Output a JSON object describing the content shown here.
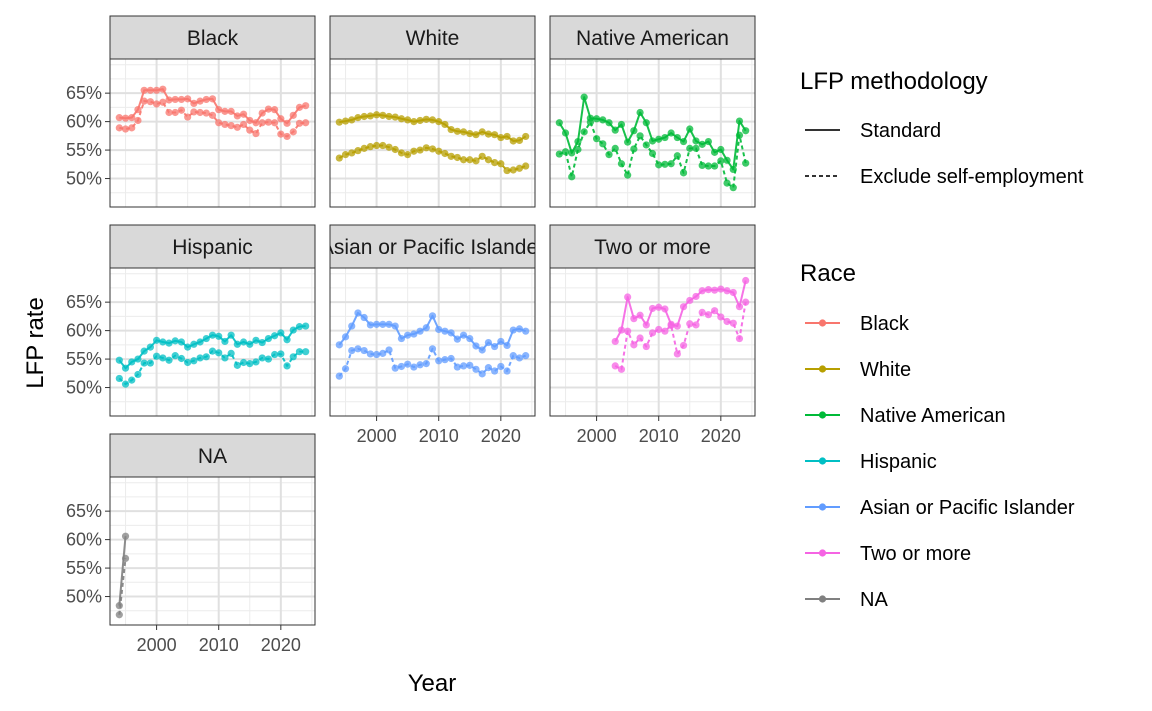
{
  "chart_data": {
    "type": "line",
    "facet_by": "Race",
    "xlabel": "Year",
    "ylabel": "LFP rate",
    "xlim": [
      1992.5,
      2025.5
    ],
    "ylim": [
      45,
      71
    ],
    "x_ticks": [
      2000,
      2010,
      2020
    ],
    "y_ticks": [
      50,
      55,
      60,
      65
    ],
    "y_tick_format": "{v}%",
    "grid": true,
    "legend_position": "right",
    "legends": {
      "linetype": {
        "title": "LFP methodology",
        "entries": [
          {
            "label": "Standard",
            "dash": "solid"
          },
          {
            "label": "Exclude self-employment",
            "dash": "dashed"
          }
        ]
      },
      "color": {
        "title": "Race",
        "entries": [
          {
            "label": "Black",
            "color": "#F8766D"
          },
          {
            "label": "White",
            "color": "#B79F00"
          },
          {
            "label": "Native American",
            "color": "#00BA38"
          },
          {
            "label": "Hispanic",
            "color": "#00BFC4"
          },
          {
            "label": "Asian or Pacific Islander",
            "color": "#619CFF"
          },
          {
            "label": "Two or more",
            "color": "#F564E3"
          },
          {
            "label": "NA",
            "color": "#808080"
          }
        ]
      }
    },
    "facets": [
      {
        "label": "Black",
        "color": "#F8766D",
        "series": [
          {
            "name": "Standard",
            "dash": "solid",
            "x": [
              1994,
              1995,
              1996,
              1997,
              1998,
              1999,
              2000,
              2001,
              2002,
              2003,
              2004,
              2005,
              2006,
              2007,
              2008,
              2009,
              2010,
              2011,
              2012,
              2013,
              2014,
              2015,
              2016,
              2017,
              2018,
              2019,
              2020,
              2021,
              2022,
              2023,
              2024
            ],
            "y": [
              60.7,
              60.6,
              60.7,
              62.1,
              65.5,
              65.5,
              65.5,
              65.7,
              63.8,
              63.9,
              63.9,
              64.0,
              63.2,
              63.6,
              63.9,
              64.0,
              62.1,
              61.8,
              61.8,
              61.0,
              61.3,
              60.2,
              59.8,
              61.5,
              62.2,
              62.1,
              60.5,
              59.7,
              61.1,
              62.5,
              62.8
            ]
          },
          {
            "name": "Exclude self-employment",
            "dash": "dashed",
            "x": [
              1994,
              1995,
              1996,
              1997,
              1998,
              1999,
              2000,
              2001,
              2002,
              2003,
              2004,
              2005,
              2006,
              2007,
              2008,
              2009,
              2010,
              2011,
              2012,
              2013,
              2014,
              2015,
              2016,
              2017,
              2018,
              2019,
              2020,
              2021,
              2022,
              2023,
              2024
            ],
            "y": [
              58.9,
              58.7,
              58.9,
              60.2,
              63.6,
              63.5,
              63.1,
              63.4,
              61.6,
              61.6,
              62.0,
              60.8,
              61.7,
              61.6,
              61.5,
              61.1,
              59.8,
              59.5,
              59.3,
              59.0,
              59.5,
              58.5,
              57.9,
              59.8,
              59.9,
              59.8,
              57.8,
              57.4,
              58.2,
              59.7,
              59.8
            ]
          }
        ]
      },
      {
        "label": "White",
        "color": "#B79F00",
        "series": [
          {
            "name": "Standard",
            "dash": "solid",
            "x": [
              1994,
              1995,
              1996,
              1997,
              1998,
              1999,
              2000,
              2001,
              2002,
              2003,
              2004,
              2005,
              2006,
              2007,
              2008,
              2009,
              2010,
              2011,
              2012,
              2013,
              2014,
              2015,
              2016,
              2017,
              2018,
              2019,
              2020,
              2021,
              2022,
              2023,
              2024
            ],
            "y": [
              59.9,
              60.1,
              60.3,
              60.7,
              60.9,
              61.0,
              61.2,
              61.1,
              60.9,
              60.8,
              60.5,
              60.3,
              60.0,
              60.2,
              60.4,
              60.3,
              60.0,
              59.5,
              58.6,
              58.3,
              58.2,
              57.9,
              57.7,
              58.2,
              57.8,
              57.7,
              57.2,
              57.4,
              56.6,
              56.7,
              57.4
            ]
          },
          {
            "name": "Exclude self-employment",
            "dash": "dashed",
            "x": [
              1994,
              1995,
              1996,
              1997,
              1998,
              1999,
              2000,
              2001,
              2002,
              2003,
              2004,
              2005,
              2006,
              2007,
              2008,
              2009,
              2010,
              2011,
              2012,
              2013,
              2014,
              2015,
              2016,
              2017,
              2018,
              2019,
              2020,
              2021,
              2022,
              2023,
              2024
            ],
            "y": [
              53.6,
              54.2,
              54.5,
              54.9,
              55.3,
              55.6,
              55.8,
              55.8,
              55.5,
              55.1,
              54.5,
              54.2,
              54.8,
              55.0,
              55.4,
              55.2,
              54.8,
              54.4,
              53.9,
              53.7,
              53.3,
              53.3,
              53.1,
              53.9,
              53.3,
              52.8,
              52.6,
              51.4,
              51.5,
              51.8,
              52.2
            ]
          }
        ]
      },
      {
        "label": "Native American",
        "color": "#00BA38",
        "series": [
          {
            "name": "Standard",
            "dash": "solid",
            "x": [
              1994,
              1995,
              1996,
              1997,
              1998,
              1999,
              2000,
              2001,
              2002,
              2003,
              2004,
              2005,
              2006,
              2007,
              2008,
              2009,
              2010,
              2011,
              2012,
              2013,
              2014,
              2015,
              2016,
              2017,
              2018,
              2019,
              2020,
              2021,
              2022,
              2023,
              2024
            ],
            "y": [
              59.8,
              58.0,
              54.5,
              56.5,
              64.3,
              60.6,
              60.5,
              60.3,
              59.8,
              58.5,
              59.5,
              56.4,
              58.4,
              61.6,
              59.8,
              56.6,
              56.9,
              57.2,
              58.0,
              57.2,
              56.5,
              58.7,
              56.6,
              56.0,
              56.5,
              54.6,
              55.1,
              53.2,
              51.6,
              60.1,
              58.4
            ]
          },
          {
            "name": "Exclude self-employment",
            "dash": "dashed",
            "x": [
              1994,
              1995,
              1996,
              1997,
              1998,
              1999,
              2000,
              2001,
              2002,
              2003,
              2004,
              2005,
              2006,
              2007,
              2008,
              2009,
              2010,
              2011,
              2012,
              2013,
              2014,
              2015,
              2016,
              2017,
              2018,
              2019,
              2020,
              2021,
              2022,
              2023,
              2024
            ],
            "y": [
              54.3,
              54.7,
              50.3,
              55.1,
              58.2,
              59.9,
              57.0,
              56.1,
              54.2,
              55.3,
              52.6,
              50.6,
              55.2,
              57.5,
              55.9,
              54.4,
              52.4,
              52.5,
              52.6,
              54.0,
              51.0,
              55.3,
              55.3,
              52.3,
              52.2,
              52.2,
              53.1,
              49.2,
              48.4,
              57.6,
              52.7
            ]
          }
        ]
      },
      {
        "label": "Hispanic",
        "color": "#00BFC4",
        "series": [
          {
            "name": "Standard",
            "dash": "solid",
            "x": [
              1994,
              1995,
              1996,
              1997,
              1998,
              1999,
              2000,
              2001,
              2002,
              2003,
              2004,
              2005,
              2006,
              2007,
              2008,
              2009,
              2010,
              2011,
              2012,
              2013,
              2014,
              2015,
              2016,
              2017,
              2018,
              2019,
              2020,
              2021,
              2022,
              2023,
              2024
            ],
            "y": [
              54.8,
              53.4,
              54.5,
              55.0,
              56.4,
              57.1,
              58.3,
              58.0,
              57.8,
              58.2,
              58.0,
              57.1,
              57.6,
              58.0,
              58.6,
              59.2,
              59.0,
              58.1,
              59.2,
              57.6,
              58.0,
              57.6,
              58.3,
              57.9,
              58.6,
              59.1,
              59.6,
              58.4,
              60.1,
              60.7,
              60.8
            ]
          },
          {
            "name": "Exclude self-employment",
            "dash": "dashed",
            "x": [
              1994,
              1995,
              1996,
              1997,
              1998,
              1999,
              2000,
              2001,
              2002,
              2003,
              2004,
              2005,
              2006,
              2007,
              2008,
              2009,
              2010,
              2011,
              2012,
              2013,
              2014,
              2015,
              2016,
              2017,
              2018,
              2019,
              2020,
              2021,
              2022,
              2023,
              2024
            ],
            "y": [
              51.6,
              50.6,
              51.3,
              52.3,
              54.3,
              54.3,
              55.5,
              55.2,
              54.8,
              55.6,
              55.1,
              54.4,
              54.7,
              55.2,
              55.4,
              56.4,
              56.1,
              55.2,
              56.0,
              53.9,
              54.4,
              54.2,
              54.5,
              55.2,
              55.0,
              55.8,
              55.9,
              53.8,
              55.4,
              56.3,
              56.3
            ]
          }
        ]
      },
      {
        "label": "Asian or Pacific Islander",
        "color": "#619CFF",
        "series": [
          {
            "name": "Standard",
            "dash": "solid",
            "x": [
              1994,
              1995,
              1996,
              1997,
              1998,
              1999,
              2000,
              2001,
              2002,
              2003,
              2004,
              2005,
              2006,
              2007,
              2008,
              2009,
              2010,
              2011,
              2012,
              2013,
              2014,
              2015,
              2016,
              2017,
              2018,
              2019,
              2020,
              2021,
              2022,
              2023,
              2024
            ],
            "y": [
              57.5,
              58.9,
              60.8,
              63.1,
              62.3,
              61.0,
              61.1,
              61.1,
              61.1,
              60.8,
              58.6,
              59.2,
              59.4,
              59.9,
              60.5,
              62.6,
              60.2,
              59.9,
              59.6,
              58.5,
              59.2,
              58.6,
              57.3,
              56.6,
              57.9,
              57.2,
              58.1,
              57.4,
              60.1,
              60.3,
              59.9
            ]
          },
          {
            "name": "Exclude self-employment",
            "dash": "dashed",
            "x": [
              1994,
              1995,
              1996,
              1997,
              1998,
              1999,
              2000,
              2001,
              2002,
              2003,
              2004,
              2005,
              2006,
              2007,
              2008,
              2009,
              2010,
              2011,
              2012,
              2013,
              2014,
              2015,
              2016,
              2017,
              2018,
              2019,
              2020,
              2021,
              2022,
              2023,
              2024
            ],
            "y": [
              52.0,
              53.3,
              56.5,
              56.8,
              56.5,
              55.9,
              55.8,
              56.0,
              56.6,
              53.4,
              53.7,
              54.1,
              53.6,
              54.0,
              54.2,
              56.8,
              54.7,
              54.9,
              55.1,
              53.6,
              53.8,
              53.9,
              53.2,
              52.4,
              53.5,
              52.9,
              53.7,
              52.9,
              55.6,
              55.2,
              55.6
            ]
          }
        ]
      },
      {
        "label": "Two or more",
        "color": "#F564E3",
        "series": [
          {
            "name": "Standard",
            "dash": "solid",
            "x": [
              2003,
              2004,
              2005,
              2006,
              2007,
              2008,
              2009,
              2010,
              2011,
              2012,
              2013,
              2014,
              2015,
              2016,
              2017,
              2018,
              2019,
              2020,
              2021,
              2022,
              2023,
              2024
            ],
            "y": [
              58.1,
              60.1,
              65.9,
              62.1,
              62.7,
              61.0,
              63.9,
              64.1,
              63.8,
              61.1,
              60.8,
              64.2,
              65.3,
              66.0,
              67.0,
              67.2,
              67.1,
              67.3,
              67.0,
              66.7,
              64.2,
              68.8
            ]
          },
          {
            "name": "Exclude self-employment",
            "dash": "dashed",
            "x": [
              2003,
              2004,
              2005,
              2006,
              2007,
              2008,
              2009,
              2010,
              2011,
              2012,
              2013,
              2014,
              2015,
              2016,
              2017,
              2018,
              2019,
              2020,
              2021,
              2022,
              2023,
              2024
            ],
            "y": [
              53.8,
              53.2,
              59.9,
              57.5,
              58.7,
              57.2,
              59.6,
              60.2,
              59.9,
              60.9,
              55.9,
              57.4,
              61.2,
              61.0,
              63.2,
              62.8,
              63.5,
              62.4,
              61.6,
              61.3,
              58.6,
              65.0
            ]
          }
        ]
      },
      {
        "label": "NA",
        "color": "#808080",
        "series": [
          {
            "name": "Standard",
            "dash": "solid",
            "x": [
              1994,
              1995
            ],
            "y": [
              48.4,
              60.6
            ]
          },
          {
            "name": "Exclude self-employment",
            "dash": "dashed",
            "x": [
              1994,
              1995
            ],
            "y": [
              46.8,
              56.7
            ]
          }
        ]
      }
    ]
  }
}
